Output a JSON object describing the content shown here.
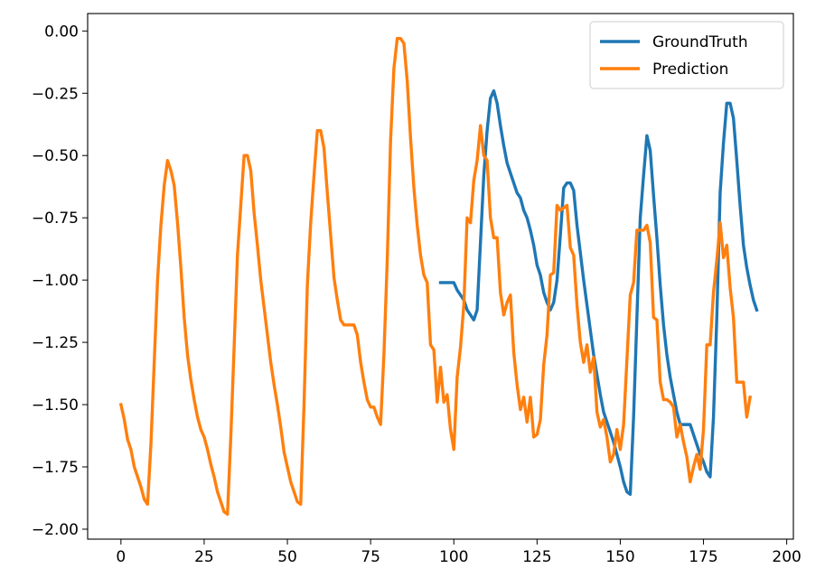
{
  "chart_data": {
    "type": "line",
    "title": "",
    "xlabel": "",
    "ylabel": "",
    "xlim": [
      -10,
      202
    ],
    "ylim": [
      -2.04,
      0.07
    ],
    "x_ticks": [
      0,
      25,
      50,
      75,
      100,
      125,
      150,
      175,
      200
    ],
    "y_ticks": [
      0.0,
      -0.25,
      -0.5,
      -0.75,
      -1.0,
      -1.25,
      -1.5,
      -1.75,
      -2.0
    ],
    "x_tick_labels": [
      "0",
      "25",
      "50",
      "75",
      "100",
      "125",
      "150",
      "175",
      "200"
    ],
    "y_tick_labels": [
      "0.00",
      "−0.25",
      "−0.50",
      "−0.75",
      "−1.00",
      "−1.25",
      "−1.50",
      "−1.75",
      "−2.00"
    ],
    "grid": false,
    "legend_position": "top-right",
    "series": [
      {
        "name": "GroundTruth",
        "color": "#1f77b4",
        "points": [
          [
            96,
            -1.01
          ],
          [
            98,
            -1.01
          ],
          [
            100,
            -1.01
          ],
          [
            101,
            -1.04
          ],
          [
            102,
            -1.06
          ],
          [
            103,
            -1.08
          ],
          [
            104,
            -1.12
          ],
          [
            105,
            -1.14
          ],
          [
            106,
            -1.16
          ],
          [
            107,
            -1.12
          ],
          [
            108,
            -0.85
          ],
          [
            109,
            -0.58
          ],
          [
            110,
            -0.4
          ],
          [
            111,
            -0.27
          ],
          [
            112,
            -0.24
          ],
          [
            113,
            -0.29
          ],
          [
            114,
            -0.38
          ],
          [
            115,
            -0.46
          ],
          [
            116,
            -0.53
          ],
          [
            117,
            -0.57
          ],
          [
            118,
            -0.61
          ],
          [
            119,
            -0.65
          ],
          [
            120,
            -0.67
          ],
          [
            121,
            -0.72
          ],
          [
            122,
            -0.75
          ],
          [
            123,
            -0.8
          ],
          [
            124,
            -0.86
          ],
          [
            125,
            -0.94
          ],
          [
            126,
            -0.98
          ],
          [
            127,
            -1.05
          ],
          [
            128,
            -1.09
          ],
          [
            129,
            -1.12
          ],
          [
            130,
            -1.09
          ],
          [
            131,
            -1.0
          ],
          [
            132,
            -0.82
          ],
          [
            133,
            -0.63
          ],
          [
            134,
            -0.61
          ],
          [
            135,
            -0.61
          ],
          [
            136,
            -0.64
          ],
          [
            137,
            -0.78
          ],
          [
            138,
            -0.89
          ],
          [
            139,
            -1.0
          ],
          [
            140,
            -1.1
          ],
          [
            141,
            -1.2
          ],
          [
            142,
            -1.3
          ],
          [
            143,
            -1.38
          ],
          [
            144,
            -1.46
          ],
          [
            145,
            -1.53
          ],
          [
            146,
            -1.57
          ],
          [
            147,
            -1.61
          ],
          [
            148,
            -1.65
          ],
          [
            149,
            -1.7
          ],
          [
            150,
            -1.75
          ],
          [
            151,
            -1.81
          ],
          [
            152,
            -1.85
          ],
          [
            153,
            -1.86
          ],
          [
            154,
            -1.55
          ],
          [
            155,
            -1.15
          ],
          [
            156,
            -0.75
          ],
          [
            157,
            -0.58
          ],
          [
            158,
            -0.42
          ],
          [
            159,
            -0.48
          ],
          [
            160,
            -0.66
          ],
          [
            161,
            -0.83
          ],
          [
            162,
            -1.02
          ],
          [
            163,
            -1.18
          ],
          [
            164,
            -1.3
          ],
          [
            165,
            -1.39
          ],
          [
            166,
            -1.46
          ],
          [
            167,
            -1.53
          ],
          [
            168,
            -1.58
          ],
          [
            169,
            -1.58
          ],
          [
            170,
            -1.58
          ],
          [
            171,
            -1.58
          ],
          [
            172,
            -1.62
          ],
          [
            173,
            -1.66
          ],
          [
            174,
            -1.7
          ],
          [
            175,
            -1.73
          ],
          [
            176,
            -1.77
          ],
          [
            177,
            -1.79
          ],
          [
            178,
            -1.55
          ],
          [
            179,
            -1.15
          ],
          [
            180,
            -0.65
          ],
          [
            181,
            -0.45
          ],
          [
            182,
            -0.29
          ],
          [
            183,
            -0.29
          ],
          [
            184,
            -0.35
          ],
          [
            185,
            -0.52
          ],
          [
            186,
            -0.7
          ],
          [
            187,
            -0.86
          ],
          [
            188,
            -0.95
          ],
          [
            189,
            -1.02
          ],
          [
            190,
            -1.08
          ],
          [
            191,
            -1.12
          ]
        ]
      },
      {
        "name": "Prediction",
        "color": "#ff7f0e",
        "points": [
          [
            0,
            -1.5
          ],
          [
            1,
            -1.56
          ],
          [
            2,
            -1.64
          ],
          [
            3,
            -1.68
          ],
          [
            4,
            -1.75
          ],
          [
            5,
            -1.79
          ],
          [
            6,
            -1.83
          ],
          [
            7,
            -1.88
          ],
          [
            8,
            -1.9
          ],
          [
            9,
            -1.66
          ],
          [
            10,
            -1.33
          ],
          [
            11,
            -1.0
          ],
          [
            12,
            -0.78
          ],
          [
            13,
            -0.62
          ],
          [
            14,
            -0.52
          ],
          [
            15,
            -0.56
          ],
          [
            16,
            -0.62
          ],
          [
            17,
            -0.77
          ],
          [
            18,
            -0.95
          ],
          [
            19,
            -1.15
          ],
          [
            20,
            -1.3
          ],
          [
            21,
            -1.4
          ],
          [
            22,
            -1.48
          ],
          [
            23,
            -1.55
          ],
          [
            24,
            -1.6
          ],
          [
            25,
            -1.63
          ],
          [
            26,
            -1.68
          ],
          [
            27,
            -1.74
          ],
          [
            28,
            -1.79
          ],
          [
            29,
            -1.85
          ],
          [
            30,
            -1.89
          ],
          [
            31,
            -1.93
          ],
          [
            32,
            -1.94
          ],
          [
            33,
            -1.63
          ],
          [
            34,
            -1.27
          ],
          [
            35,
            -0.9
          ],
          [
            36,
            -0.7
          ],
          [
            37,
            -0.5
          ],
          [
            38,
            -0.5
          ],
          [
            39,
            -0.56
          ],
          [
            40,
            -0.73
          ],
          [
            41,
            -0.86
          ],
          [
            42,
            -1.0
          ],
          [
            43,
            -1.11
          ],
          [
            44,
            -1.22
          ],
          [
            45,
            -1.33
          ],
          [
            46,
            -1.42
          ],
          [
            47,
            -1.5
          ],
          [
            48,
            -1.59
          ],
          [
            49,
            -1.69
          ],
          [
            50,
            -1.75
          ],
          [
            51,
            -1.81
          ],
          [
            52,
            -1.85
          ],
          [
            53,
            -1.89
          ],
          [
            54,
            -1.9
          ],
          [
            55,
            -1.5
          ],
          [
            56,
            -1.02
          ],
          [
            57,
            -0.77
          ],
          [
            58,
            -0.58
          ],
          [
            59,
            -0.4
          ],
          [
            60,
            -0.4
          ],
          [
            61,
            -0.47
          ],
          [
            62,
            -0.65
          ],
          [
            63,
            -0.82
          ],
          [
            64,
            -0.99
          ],
          [
            65,
            -1.08
          ],
          [
            66,
            -1.16
          ],
          [
            67,
            -1.18
          ],
          [
            68,
            -1.18
          ],
          [
            69,
            -1.18
          ],
          [
            70,
            -1.18
          ],
          [
            71,
            -1.22
          ],
          [
            72,
            -1.33
          ],
          [
            73,
            -1.41
          ],
          [
            74,
            -1.48
          ],
          [
            75,
            -1.51
          ],
          [
            76,
            -1.51
          ],
          [
            77,
            -1.55
          ],
          [
            78,
            -1.58
          ],
          [
            79,
            -1.3
          ],
          [
            80,
            -0.92
          ],
          [
            81,
            -0.44
          ],
          [
            82,
            -0.15
          ],
          [
            83,
            -0.03
          ],
          [
            84,
            -0.03
          ],
          [
            85,
            -0.05
          ],
          [
            86,
            -0.2
          ],
          [
            87,
            -0.43
          ],
          [
            88,
            -0.63
          ],
          [
            89,
            -0.78
          ],
          [
            90,
            -0.9
          ],
          [
            91,
            -0.98
          ],
          [
            92,
            -1.01
          ],
          [
            93,
            -1.26
          ],
          [
            94,
            -1.28
          ],
          [
            95,
            -1.49
          ],
          [
            96,
            -1.35
          ],
          [
            97,
            -1.49
          ],
          [
            98,
            -1.46
          ],
          [
            99,
            -1.6
          ],
          [
            100,
            -1.68
          ],
          [
            101,
            -1.39
          ],
          [
            102,
            -1.27
          ],
          [
            103,
            -1.1
          ],
          [
            104,
            -0.75
          ],
          [
            105,
            -0.77
          ],
          [
            106,
            -0.6
          ],
          [
            107,
            -0.52
          ],
          [
            108,
            -0.38
          ],
          [
            109,
            -0.5
          ],
          [
            110,
            -0.52
          ],
          [
            111,
            -0.75
          ],
          [
            112,
            -0.83
          ],
          [
            113,
            -0.83
          ],
          [
            114,
            -1.05
          ],
          [
            115,
            -1.14
          ],
          [
            116,
            -1.09
          ],
          [
            117,
            -1.06
          ],
          [
            118,
            -1.29
          ],
          [
            119,
            -1.42
          ],
          [
            120,
            -1.52
          ],
          [
            121,
            -1.47
          ],
          [
            122,
            -1.57
          ],
          [
            123,
            -1.47
          ],
          [
            124,
            -1.63
          ],
          [
            125,
            -1.62
          ],
          [
            126,
            -1.56
          ],
          [
            127,
            -1.34
          ],
          [
            128,
            -1.22
          ],
          [
            129,
            -0.98
          ],
          [
            130,
            -0.97
          ],
          [
            131,
            -0.7
          ],
          [
            132,
            -0.72
          ],
          [
            133,
            -0.71
          ],
          [
            134,
            -0.7
          ],
          [
            135,
            -0.87
          ],
          [
            136,
            -0.9
          ],
          [
            137,
            -1.1
          ],
          [
            138,
            -1.25
          ],
          [
            139,
            -1.33
          ],
          [
            140,
            -1.26
          ],
          [
            141,
            -1.37
          ],
          [
            142,
            -1.31
          ],
          [
            143,
            -1.53
          ],
          [
            144,
            -1.59
          ],
          [
            145,
            -1.56
          ],
          [
            146,
            -1.63
          ],
          [
            147,
            -1.73
          ],
          [
            148,
            -1.7
          ],
          [
            149,
            -1.6
          ],
          [
            150,
            -1.68
          ],
          [
            151,
            -1.58
          ],
          [
            152,
            -1.32
          ],
          [
            153,
            -1.06
          ],
          [
            154,
            -1.01
          ],
          [
            155,
            -0.8
          ],
          [
            156,
            -0.8
          ],
          [
            157,
            -0.8
          ],
          [
            158,
            -0.78
          ],
          [
            159,
            -0.85
          ],
          [
            160,
            -1.15
          ],
          [
            161,
            -1.16
          ],
          [
            162,
            -1.41
          ],
          [
            163,
            -1.48
          ],
          [
            164,
            -1.48
          ],
          [
            165,
            -1.49
          ],
          [
            166,
            -1.51
          ],
          [
            167,
            -1.63
          ],
          [
            168,
            -1.58
          ],
          [
            169,
            -1.65
          ],
          [
            170,
            -1.71
          ],
          [
            171,
            -1.81
          ],
          [
            172,
            -1.75
          ],
          [
            173,
            -1.7
          ],
          [
            174,
            -1.76
          ],
          [
            175,
            -1.6
          ],
          [
            176,
            -1.26
          ],
          [
            177,
            -1.26
          ],
          [
            178,
            -1.05
          ],
          [
            179,
            -0.92
          ],
          [
            180,
            -0.77
          ],
          [
            181,
            -0.91
          ],
          [
            182,
            -0.86
          ],
          [
            183,
            -1.03
          ],
          [
            184,
            -1.15
          ],
          [
            185,
            -1.41
          ],
          [
            186,
            -1.41
          ],
          [
            187,
            -1.41
          ],
          [
            188,
            -1.55
          ],
          [
            189,
            -1.47
          ]
        ]
      }
    ]
  }
}
